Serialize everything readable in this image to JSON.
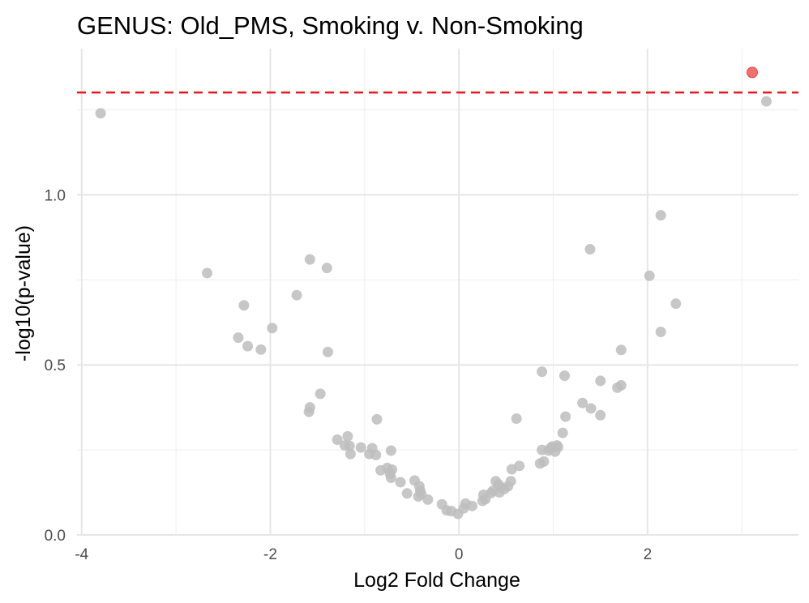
{
  "chart_data": {
    "type": "scatter",
    "title": "GENUS: Old_PMS, Smoking v. Non-Smoking",
    "xlabel": "Log2 Fold Change",
    "ylabel": "-log10(p-value)",
    "xlim": [
      -4.05,
      3.6
    ],
    "ylim": [
      0,
      1.43
    ],
    "x_ticks": [
      -4,
      -2,
      0,
      2
    ],
    "x_tick_labels": [
      "-4",
      "-2",
      "0",
      "2"
    ],
    "y_ticks": [
      0,
      0.5,
      1.0
    ],
    "y_tick_labels": [
      "0.0",
      "0.5",
      "1.0"
    ],
    "grid": true,
    "threshold_line": {
      "y": 1.301,
      "color": "#e41a1c",
      "style": "dashed"
    },
    "colors": {
      "significant": "#f0605f",
      "not_significant": "#bdbdbd",
      "threshold": "#e41a1c"
    },
    "significant_points": [
      {
        "x": 3.11,
        "y": 1.36
      }
    ],
    "points": [
      {
        "x": -3.8,
        "y": 1.24
      },
      {
        "x": -2.67,
        "y": 0.77
      },
      {
        "x": -2.28,
        "y": 0.675
      },
      {
        "x": -2.34,
        "y": 0.58
      },
      {
        "x": -2.24,
        "y": 0.555
      },
      {
        "x": -2.1,
        "y": 0.545
      },
      {
        "x": -1.98,
        "y": 0.608
      },
      {
        "x": -1.72,
        "y": 0.705
      },
      {
        "x": -1.58,
        "y": 0.81
      },
      {
        "x": -1.4,
        "y": 0.785
      },
      {
        "x": -1.39,
        "y": 0.538
      },
      {
        "x": -1.47,
        "y": 0.415
      },
      {
        "x": -1.58,
        "y": 0.375
      },
      {
        "x": -1.59,
        "y": 0.362
      },
      {
        "x": -1.29,
        "y": 0.28
      },
      {
        "x": -1.18,
        "y": 0.29
      },
      {
        "x": -1.21,
        "y": 0.263
      },
      {
        "x": -1.16,
        "y": 0.262
      },
      {
        "x": -1.15,
        "y": 0.238
      },
      {
        "x": -1.04,
        "y": 0.257
      },
      {
        "x": -0.95,
        "y": 0.238
      },
      {
        "x": -0.92,
        "y": 0.255
      },
      {
        "x": -0.87,
        "y": 0.34
      },
      {
        "x": -0.88,
        "y": 0.235
      },
      {
        "x": -0.72,
        "y": 0.248
      },
      {
        "x": -0.83,
        "y": 0.19
      },
      {
        "x": -0.76,
        "y": 0.197
      },
      {
        "x": -0.71,
        "y": 0.192
      },
      {
        "x": -0.73,
        "y": 0.18
      },
      {
        "x": -0.72,
        "y": 0.168
      },
      {
        "x": -0.62,
        "y": 0.155
      },
      {
        "x": -0.55,
        "y": 0.122
      },
      {
        "x": -0.47,
        "y": 0.16
      },
      {
        "x": -0.42,
        "y": 0.143
      },
      {
        "x": -0.41,
        "y": 0.13
      },
      {
        "x": -0.4,
        "y": 0.12
      },
      {
        "x": -0.43,
        "y": 0.113
      },
      {
        "x": -0.33,
        "y": 0.104
      },
      {
        "x": -0.18,
        "y": 0.09
      },
      {
        "x": -0.13,
        "y": 0.072
      },
      {
        "x": -0.08,
        "y": 0.07
      },
      {
        "x": -0.01,
        "y": 0.062
      },
      {
        "x": 0.05,
        "y": 0.078
      },
      {
        "x": 0.07,
        "y": 0.092
      },
      {
        "x": 0.14,
        "y": 0.085
      },
      {
        "x": 0.25,
        "y": 0.1
      },
      {
        "x": 0.28,
        "y": 0.105
      },
      {
        "x": 0.26,
        "y": 0.118
      },
      {
        "x": 0.34,
        "y": 0.123
      },
      {
        "x": 0.36,
        "y": 0.13
      },
      {
        "x": 0.39,
        "y": 0.158
      },
      {
        "x": 0.42,
        "y": 0.148
      },
      {
        "x": 0.44,
        "y": 0.14
      },
      {
        "x": 0.43,
        "y": 0.125
      },
      {
        "x": 0.48,
        "y": 0.135
      },
      {
        "x": 0.52,
        "y": 0.143
      },
      {
        "x": 0.55,
        "y": 0.158
      },
      {
        "x": 0.56,
        "y": 0.193
      },
      {
        "x": 0.64,
        "y": 0.203
      },
      {
        "x": 0.61,
        "y": 0.342
      },
      {
        "x": 0.86,
        "y": 0.21
      },
      {
        "x": 0.9,
        "y": 0.216
      },
      {
        "x": 0.88,
        "y": 0.25
      },
      {
        "x": 0.95,
        "y": 0.248
      },
      {
        "x": 0.97,
        "y": 0.255
      },
      {
        "x": 0.99,
        "y": 0.26
      },
      {
        "x": 1.02,
        "y": 0.245
      },
      {
        "x": 1.05,
        "y": 0.258
      },
      {
        "x": 1.04,
        "y": 0.263
      },
      {
        "x": 1.1,
        "y": 0.3
      },
      {
        "x": 1.13,
        "y": 0.348
      },
      {
        "x": 0.88,
        "y": 0.48
      },
      {
        "x": 1.12,
        "y": 0.468
      },
      {
        "x": 1.31,
        "y": 0.388
      },
      {
        "x": 1.4,
        "y": 0.372
      },
      {
        "x": 1.5,
        "y": 0.352
      },
      {
        "x": 1.5,
        "y": 0.453
      },
      {
        "x": 1.68,
        "y": 0.433
      },
      {
        "x": 1.72,
        "y": 0.44
      },
      {
        "x": 1.72,
        "y": 0.544
      },
      {
        "x": 1.39,
        "y": 0.84
      },
      {
        "x": 2.02,
        "y": 0.762
      },
      {
        "x": 2.14,
        "y": 0.94
      },
      {
        "x": 2.14,
        "y": 0.597
      },
      {
        "x": 2.3,
        "y": 0.68
      },
      {
        "x": 3.26,
        "y": 1.275
      }
    ]
  }
}
